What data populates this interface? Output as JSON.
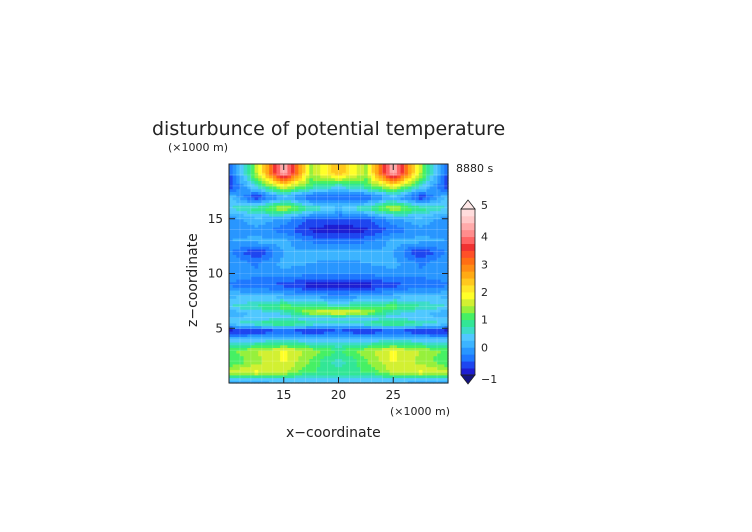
{
  "chart_data": {
    "type": "heatmap",
    "title": "disturbunce of potential temperature",
    "time_label": "8880 s",
    "xlabel": "x−coordinate",
    "ylabel": "z−coordinate",
    "x_unit": "(×1000 m)",
    "y_unit": "(×1000 m)",
    "xlim": [
      10,
      30
    ],
    "ylim": [
      0,
      20
    ],
    "x_ticks": [
      "15",
      "20",
      "25"
    ],
    "y_ticks": [
      "5",
      "10",
      "15"
    ],
    "x_tick_values": [
      15,
      20,
      25
    ],
    "y_tick_values": [
      5,
      10,
      15
    ],
    "colorbar": {
      "min": -1,
      "max": 5,
      "tick_labels": [
        "5",
        "4",
        "3",
        "2",
        "1",
        "0",
        "−1"
      ],
      "tick_values": [
        5,
        4,
        3,
        2,
        1,
        0,
        -1
      ],
      "levels": [
        -1,
        -0.75,
        -0.5,
        -0.25,
        0,
        0.25,
        0.5,
        0.75,
        1,
        1.25,
        1.5,
        1.75,
        2,
        2.25,
        2.5,
        2.75,
        3,
        3.25,
        3.5,
        3.75,
        4,
        4.25,
        4.5,
        4.75,
        5
      ],
      "colors": [
        "#1e1ed2",
        "#1e46f0",
        "#1e78ff",
        "#2896ff",
        "#3cb4ff",
        "#50c8ff",
        "#3cdcc8",
        "#32e696",
        "#46f064",
        "#96f03c",
        "#d2f032",
        "#ffff28",
        "#ffe628",
        "#ffc81e",
        "#ffaa14",
        "#ff8c14",
        "#ff6e14",
        "#ff5028",
        "#f03232",
        "#ff6464",
        "#ff8c8c",
        "#ffaaaa",
        "#ffc8c8",
        "#ffdcdc"
      ]
    },
    "z_rows": [
      {
        "z": 19.2,
        "values": [
          -0.6,
          1.5,
          4.6,
          1.4,
          2.5,
          1.4,
          4.6,
          1.5,
          -0.6
        ]
      },
      {
        "z": 18.0,
        "values": [
          -0.8,
          0.6,
          1.8,
          1.0,
          0.5,
          1.0,
          1.8,
          0.6,
          -0.8
        ]
      },
      {
        "z": 17.0,
        "values": [
          0.3,
          -0.8,
          0.1,
          -0.6,
          -0.5,
          -0.6,
          0.1,
          -0.8,
          0.3
        ]
      },
      {
        "z": 16.0,
        "values": [
          0.5,
          0.9,
          1.6,
          0.8,
          0.3,
          0.8,
          1.6,
          0.9,
          0.5
        ]
      },
      {
        "z": 15.0,
        "values": [
          -0.2,
          0.2,
          -0.1,
          -0.6,
          -0.6,
          -0.6,
          -0.1,
          0.2,
          -0.2
        ]
      },
      {
        "z": 14.0,
        "values": [
          -0.1,
          -0.1,
          -0.4,
          -0.8,
          -0.9,
          -0.8,
          -0.4,
          -0.1,
          -0.1
        ]
      },
      {
        "z": 13.0,
        "values": [
          0.0,
          0.1,
          0.1,
          -0.3,
          -0.4,
          -0.3,
          0.1,
          0.1,
          0.0
        ]
      },
      {
        "z": 12.0,
        "values": [
          -0.2,
          -0.8,
          0.0,
          0.1,
          0.2,
          0.1,
          0.0,
          -0.8,
          -0.2
        ]
      },
      {
        "z": 11.0,
        "values": [
          0.0,
          -0.3,
          0.1,
          0.0,
          -0.1,
          0.0,
          0.1,
          -0.3,
          0.0
        ]
      },
      {
        "z": 10.0,
        "values": [
          -0.1,
          -0.2,
          -0.1,
          -0.2,
          -0.2,
          -0.2,
          -0.1,
          -0.2,
          -0.1
        ]
      },
      {
        "z": 9.0,
        "values": [
          -0.3,
          -0.4,
          -0.6,
          -0.9,
          -0.9,
          -0.9,
          -0.6,
          -0.4,
          -0.3
        ]
      },
      {
        "z": 8.0,
        "values": [
          0.2,
          0.2,
          0.1,
          -0.1,
          -0.2,
          -0.1,
          0.1,
          0.2,
          0.2
        ]
      },
      {
        "z": 7.0,
        "values": [
          0.5,
          0.8,
          1.2,
          1.0,
          0.8,
          1.0,
          1.2,
          0.8,
          0.5
        ]
      },
      {
        "z": 6.5,
        "values": [
          0.1,
          0.3,
          0.6,
          1.6,
          2.0,
          1.6,
          0.6,
          0.3,
          0.1
        ]
      },
      {
        "z": 6.0,
        "values": [
          0.2,
          0.3,
          0.4,
          0.3,
          0.4,
          0.3,
          0.4,
          0.3,
          0.2
        ]
      },
      {
        "z": 5.5,
        "values": [
          0.4,
          0.8,
          1.2,
          0.8,
          0.6,
          0.8,
          1.2,
          0.8,
          0.4
        ]
      },
      {
        "z": 4.8,
        "values": [
          -0.9,
          -0.8,
          -0.6,
          -0.8,
          -0.6,
          -0.8,
          -0.6,
          -0.8,
          -0.9
        ]
      },
      {
        "z": 4.0,
        "values": [
          0.2,
          0.3,
          0.4,
          0.3,
          0.2,
          0.3,
          0.4,
          0.3,
          0.2
        ]
      },
      {
        "z": 3.0,
        "values": [
          1.2,
          1.5,
          1.8,
          1.4,
          1.0,
          1.4,
          1.8,
          1.5,
          1.2
        ]
      },
      {
        "z": 2.0,
        "values": [
          1.0,
          1.4,
          1.8,
          1.2,
          0.6,
          1.2,
          1.8,
          1.4,
          1.0
        ]
      },
      {
        "z": 1.0,
        "values": [
          1.6,
          1.8,
          1.5,
          1.0,
          0.9,
          1.0,
          1.5,
          1.8,
          1.6
        ]
      },
      {
        "z": 0.3,
        "values": [
          0.1,
          0.2,
          0.3,
          0.3,
          0.3,
          0.3,
          0.3,
          0.2,
          0.1
        ]
      }
    ],
    "x_nodes": [
      10,
      12.5,
      15,
      17.5,
      20,
      22.5,
      25,
      27.5,
      30
    ],
    "grid": true,
    "legend": "colorbar right"
  }
}
